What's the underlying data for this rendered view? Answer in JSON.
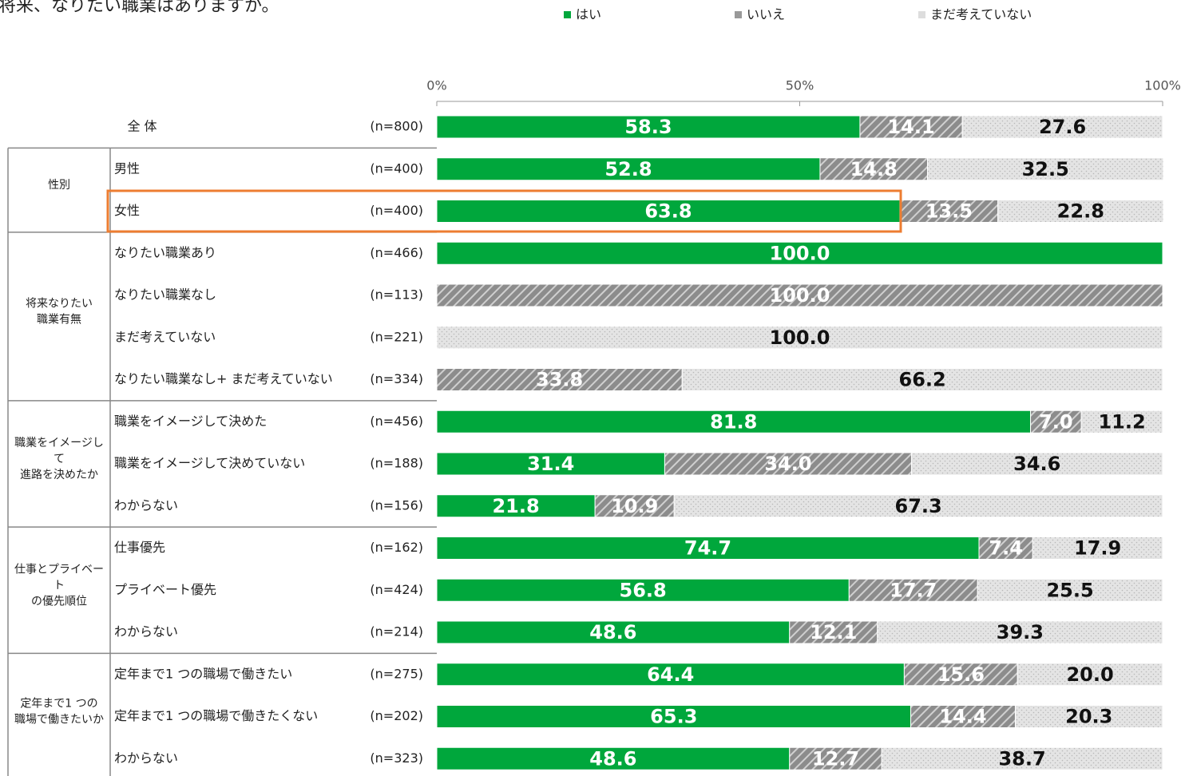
{
  "chart_data": {
    "type": "stacked_bar_horizontal",
    "title": "将来、なりたい職業はありますか。",
    "categories": [
      "全 体",
      "男性",
      "女性",
      "なりたい職業あり",
      "なりたい職業なし",
      "まだ考えていない",
      "なりたい職業なし+ まだ考えていない",
      "職業をイメージして決めた",
      "職業をイメージして決めていない",
      "わからない",
      "仕事優先",
      "プライベート優先",
      "わからない",
      "定年まで1 つの職場で働きたい",
      "定年まで1 つの職場で働きたくない",
      "わからない"
    ],
    "n_labels": [
      "(n=800)",
      "(n=400)",
      "(n=400)",
      "(n=466)",
      "(n=113)",
      "(n=221)",
      "(n=334)",
      "(n=456)",
      "(n=188)",
      "(n=156)",
      "(n=162)",
      "(n=424)",
      "(n=214)",
      "(n=275)",
      "(n=202)",
      "(n=323)"
    ],
    "groups": [
      {
        "lines": [
          "性別"
        ]
      },
      {
        "lines": [
          "将来なりたい",
          "職業有無"
        ]
      },
      {
        "lines": [
          "職業をイメージし",
          "て",
          "進路を決めたか"
        ]
      },
      {
        "lines": [
          "仕事とプライベー",
          "ト",
          "の優先順位"
        ]
      },
      {
        "lines": [
          "定年まで1 つの",
          "職場で働きたいか"
        ]
      }
    ],
    "series": [
      {
        "name": "はい",
        "color": "#00a73c",
        "pattern": "solid",
        "values": [
          58.3,
          52.8,
          63.8,
          100,
          null,
          null,
          null,
          81.8,
          31.4,
          21.8,
          74.7,
          56.8,
          48.6,
          64.4,
          65.3,
          48.6
        ],
        "value_labels": [
          "58.3",
          "52.8",
          "63.8",
          "100.0",
          null,
          null,
          null,
          "81.8",
          "31.4",
          "21.8",
          "74.7",
          "56.8",
          "48.6",
          "64.4",
          "65.3",
          "48.6"
        ]
      },
      {
        "name": "いいえ",
        "color": "#8c8c8c",
        "pattern": "hatch",
        "values": [
          14.1,
          14.8,
          13.5,
          null,
          100,
          null,
          33.8,
          7.0,
          34.0,
          10.9,
          7.4,
          17.7,
          12.1,
          15.6,
          14.4,
          12.7
        ],
        "value_labels": [
          "14.1",
          "14.8",
          "13.5",
          null,
          "100.0",
          null,
          "33.8",
          "7.0",
          "34.0",
          "10.9",
          "7.4",
          "17.7",
          "12.1",
          "15.6",
          "14.4",
          "12.7"
        ]
      },
      {
        "name": "まだ考えていない",
        "color": "#dcdcdc",
        "pattern": "dots",
        "values": [
          27.6,
          32.5,
          22.8,
          null,
          null,
          100,
          66.2,
          11.2,
          34.6,
          67.3,
          17.9,
          25.5,
          39.3,
          20.0,
          20.3,
          38.7
        ],
        "value_labels": [
          "27.6",
          "32.5",
          "22.8",
          null,
          null,
          "100.0",
          "66.2",
          "11.2",
          "34.6",
          "67.3",
          "17.9",
          "25.5",
          "39.3",
          "20.0",
          "20.3",
          "38.7"
        ]
      }
    ],
    "xlim": [
      0,
      100
    ],
    "xticks": [
      {
        "value": 0,
        "label": "0%"
      },
      {
        "value": 50,
        "label": "50%"
      },
      {
        "value": 100,
        "label": "100%"
      }
    ]
  }
}
